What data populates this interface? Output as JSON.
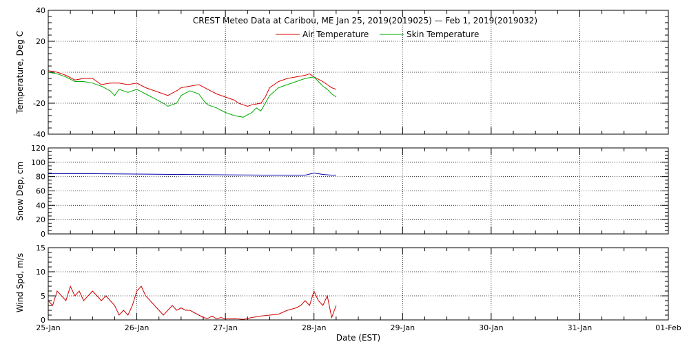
{
  "title": "CREST Meteo Data at Caribou, ME   Jan 25, 2019(2019025) — Feb  1, 2019(2019032)",
  "xlabel": "Date (EST)",
  "x_tick_labels": [
    "25-Jan",
    "26-Jan",
    "27-Jan",
    "28-Jan",
    "29-Jan",
    "30-Jan",
    "31-Jan",
    "01-Feb"
  ],
  "colors": {
    "air": "#dd0000",
    "skin": "#00aa00",
    "snow": "#0000aa",
    "wind": "#cc0000",
    "axis": "#000000"
  },
  "chart_data": [
    {
      "type": "line",
      "ylabel": "Temperature, Deg C",
      "xlim": [
        0,
        7
      ],
      "ylim": [
        -40,
        40
      ],
      "yticks": [
        -40,
        -20,
        0,
        20,
        40
      ],
      "x_unit": "days since 25-Jan 00:00 EST",
      "series": [
        {
          "name": "Air Temperature",
          "color": "#dd0000",
          "x": [
            0,
            0.1,
            0.2,
            0.3,
            0.4,
            0.5,
            0.6,
            0.7,
            0.8,
            0.9,
            1.0,
            1.1,
            1.2,
            1.3,
            1.35,
            1.45,
            1.5,
            1.6,
            1.7,
            1.8,
            1.9,
            2.0,
            2.1,
            2.15,
            2.2,
            2.25,
            2.3,
            2.4,
            2.45,
            2.5,
            2.6,
            2.7,
            2.8,
            2.9,
            2.95,
            3.0,
            3.1,
            3.15,
            3.2,
            3.25
          ],
          "y": [
            1,
            0,
            -2,
            -5,
            -4,
            -4,
            -8,
            -7,
            -7,
            -8,
            -7,
            -10,
            -12,
            -14,
            -15,
            -12,
            -10,
            -9,
            -8,
            -11,
            -14,
            -16,
            -18,
            -20,
            -21,
            -22,
            -21,
            -20,
            -16,
            -10,
            -6,
            -4,
            -3,
            -2,
            -1,
            -3,
            -6,
            -8,
            -10,
            -11
          ]
        },
        {
          "name": "Skin Temperature",
          "color": "#00aa00",
          "x": [
            0,
            0.1,
            0.2,
            0.3,
            0.4,
            0.5,
            0.6,
            0.7,
            0.75,
            0.8,
            0.9,
            1.0,
            1.1,
            1.2,
            1.3,
            1.35,
            1.45,
            1.5,
            1.6,
            1.7,
            1.75,
            1.8,
            1.9,
            2.0,
            2.1,
            2.2,
            2.3,
            2.35,
            2.4,
            2.5,
            2.6,
            2.7,
            2.8,
            2.9,
            3.0,
            3.05,
            3.1,
            3.15,
            3.2,
            3.25
          ],
          "y": [
            0,
            -1,
            -3,
            -6,
            -6,
            -7,
            -9,
            -12,
            -15,
            -11,
            -13,
            -11,
            -14,
            -17,
            -20,
            -22,
            -20,
            -15,
            -12,
            -14,
            -18,
            -21,
            -23,
            -26,
            -28,
            -29,
            -26,
            -23,
            -25,
            -15,
            -10,
            -8,
            -6,
            -4,
            -3,
            -6,
            -9,
            -11,
            -14,
            -16
          ]
        }
      ]
    },
    {
      "type": "line",
      "ylabel": "Snow Dep, cm",
      "xlim": [
        0,
        7
      ],
      "ylim": [
        0,
        120
      ],
      "yticks": [
        0,
        20,
        40,
        60,
        80,
        100,
        120
      ],
      "series": [
        {
          "color": "#0000aa",
          "x": [
            0,
            0.5,
            1.0,
            1.5,
            2.0,
            2.5,
            2.9,
            3.0,
            3.1,
            3.2,
            3.25
          ],
          "y": [
            84,
            84,
            83.5,
            83,
            82.5,
            82,
            82,
            85,
            83,
            82,
            82
          ]
        }
      ]
    },
    {
      "type": "line",
      "ylabel": "Wind Spd, m/s",
      "xlim": [
        0,
        7
      ],
      "ylim": [
        0,
        15
      ],
      "yticks": [
        0,
        5,
        10,
        15
      ],
      "series": [
        {
          "color": "#cc0000",
          "x": [
            0,
            0.05,
            0.1,
            0.15,
            0.2,
            0.25,
            0.3,
            0.35,
            0.4,
            0.45,
            0.5,
            0.55,
            0.6,
            0.65,
            0.7,
            0.75,
            0.8,
            0.85,
            0.9,
            0.95,
            1.0,
            1.05,
            1.1,
            1.15,
            1.2,
            1.25,
            1.3,
            1.35,
            1.4,
            1.45,
            1.5,
            1.55,
            1.6,
            1.65,
            1.7,
            1.75,
            1.8,
            1.85,
            1.9,
            1.95,
            2.0,
            2.1,
            2.2,
            2.3,
            2.4,
            2.5,
            2.6,
            2.7,
            2.8,
            2.85,
            2.9,
            2.95,
            3.0,
            3.05,
            3.1,
            3.15,
            3.2,
            3.25
          ],
          "y": [
            4,
            3,
            6,
            5,
            4,
            7,
            5,
            6,
            4,
            5,
            6,
            5,
            4,
            5,
            4,
            3,
            1,
            2,
            1,
            3,
            6,
            7,
            5,
            4,
            3,
            2,
            1,
            2,
            3,
            2,
            2.5,
            2,
            2,
            1.5,
            1,
            0.5,
            0.3,
            0.8,
            0.2,
            0.5,
            0.2,
            0.3,
            0.1,
            0.5,
            0.8,
            1,
            1.2,
            2,
            2.5,
            3,
            4,
            3,
            6,
            4,
            3,
            5,
            0.5,
            3
          ]
        }
      ]
    }
  ]
}
